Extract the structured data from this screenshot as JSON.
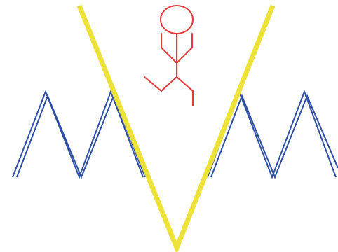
{
  "diagram": {
    "elements": [
      {
        "kind": "zigzag-double-line",
        "color_name": "blue"
      },
      {
        "kind": "v-shape-line",
        "color_name": "yellow"
      },
      {
        "kind": "stick-figure",
        "color_name": "red"
      }
    ]
  },
  "colors": {
    "zigzag": "#2E4FA3",
    "v_shape": "#ECE23A",
    "stick_figure": "#E53A3A",
    "background": "#FFFFFF"
  }
}
